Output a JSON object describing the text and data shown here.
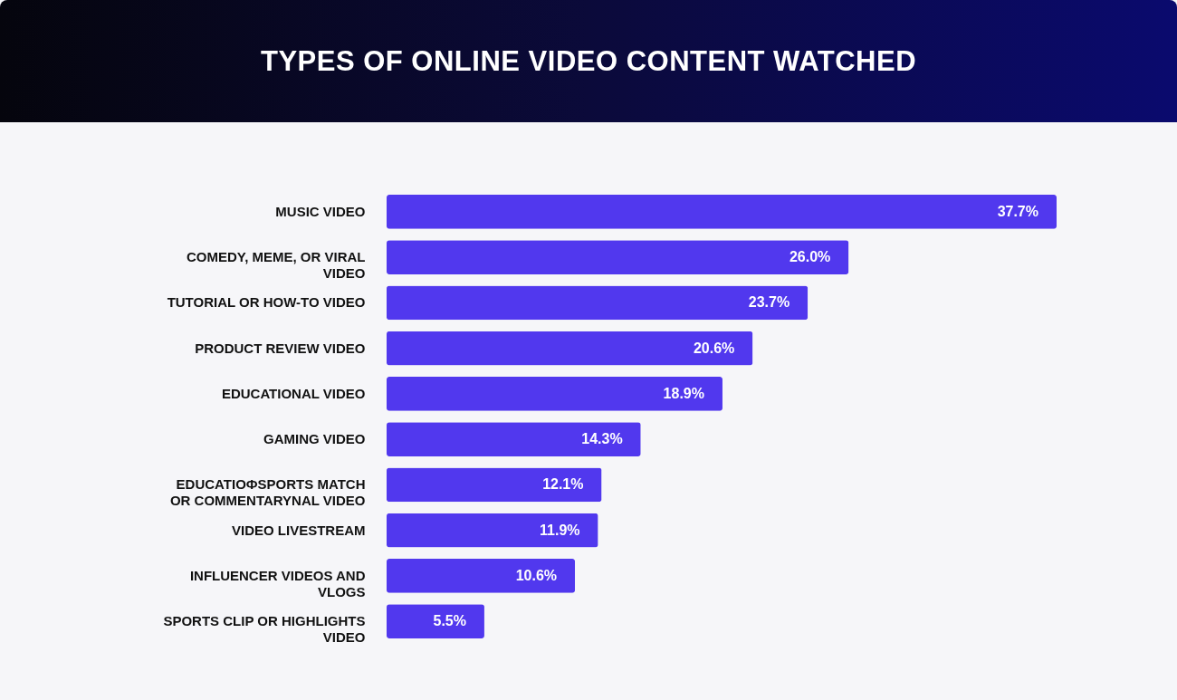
{
  "chart_data": {
    "type": "bar",
    "orientation": "horizontal",
    "title": "TYPES OF ONLINE VIDEO CONTENT WATCHED",
    "categories": [
      "MUSIC VIDEO",
      "COMEDY, MEME, OR VIRAL VIDEO",
      "TUTORIAL OR HOW-TO VIDEO",
      "PRODUCT REVIEW VIDEO",
      "EDUCATIONAL VIDEO",
      "GAMING VIDEO",
      "EDUCATIOФSPORTS MATCH OR COMMENTARYNAL VIDEO",
      "VIDEO LIVESTREAM",
      "INFLUENCER VIDEOS AND VLOGS",
      "SPORTS CLIP OR HIGHLIGHTS VIDEO"
    ],
    "values": [
      37.7,
      26.0,
      23.7,
      20.6,
      18.9,
      14.3,
      12.1,
      11.9,
      10.6,
      5.5
    ],
    "value_labels": [
      "37.7%",
      "26.0%",
      "23.7%",
      "20.6%",
      "18.9%",
      "14.3%",
      "12.1%",
      "11.9%",
      "10.6%",
      "5.5%"
    ],
    "color": "#5138ee"
  }
}
